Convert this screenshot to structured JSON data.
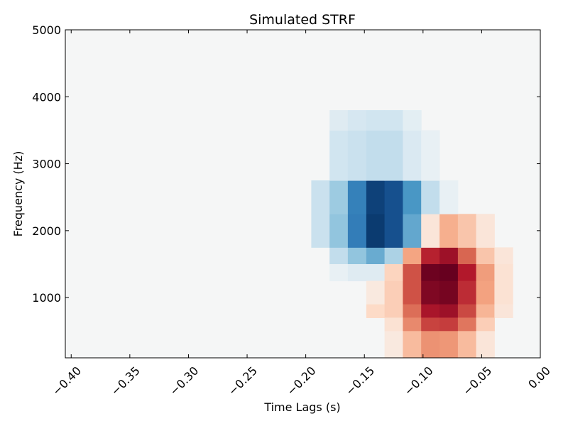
{
  "chart_data": {
    "type": "heatmap",
    "title": "Simulated STRF",
    "xlabel": "Time Lags (s)",
    "ylabel": "Frequency (Hz)",
    "xlim": [
      -0.405,
      0.0
    ],
    "ylim": [
      100,
      5000
    ],
    "xticks": [
      -0.4,
      -0.35,
      -0.3,
      -0.25,
      -0.2,
      -0.15,
      -0.1,
      -0.05,
      0.0
    ],
    "xtick_labels": [
      "−0.40",
      "−0.35",
      "−0.30",
      "−0.25",
      "−0.20",
      "−0.15",
      "−0.10",
      "−0.05",
      "0.00"
    ],
    "yticks": [
      1000,
      2000,
      3000,
      4000,
      5000
    ],
    "ytick_labels": [
      "1000",
      "2000",
      "3000",
      "4000",
      "5000"
    ],
    "colormap": "RdBu_r (blue = negative, red = positive)",
    "color_range": [
      -1,
      1
    ],
    "grid": false,
    "time_bins": [
      -0.1875,
      -0.1719,
      -0.1563,
      -0.1406,
      -0.125,
      -0.1094,
      -0.0938,
      -0.0781,
      -0.0625,
      -0.0469,
      -0.0313
    ],
    "time_bin_width": 0.0156,
    "freq_bins": [
      250,
      500,
      750,
      1000,
      1250,
      1500,
      1750,
      2000,
      2500,
      3000,
      3500
    ],
    "freq_bin_edges": [
      100,
      200,
      300,
      400,
      500,
      600,
      700,
      800,
      900,
      1000,
      1100,
      1200,
      1300,
      1400,
      1500,
      1750,
      2000,
      2250,
      2500,
      2750,
      3000,
      3500,
      4000
    ],
    "cells": [
      {
        "t": -0.1719,
        "f0": 1500,
        "f1": 1750,
        "v": -0.12
      },
      {
        "t": -0.1563,
        "f0": 1500,
        "f1": 1750,
        "v": -0.25
      },
      {
        "t": -0.1406,
        "f0": 1500,
        "f1": 1750,
        "v": -0.38
      },
      {
        "t": -0.125,
        "f0": 1500,
        "f1": 1750,
        "v": -0.18
      },
      {
        "t": -0.1094,
        "f0": 1500,
        "f1": 1750,
        "v": 0.25
      },
      {
        "t": -0.0938,
        "f0": 1500,
        "f1": 1750,
        "v": 0.72
      },
      {
        "t": -0.0781,
        "f0": 1500,
        "f1": 1750,
        "v": 0.82
      },
      {
        "t": -0.0625,
        "f0": 1500,
        "f1": 1750,
        "v": 0.48
      },
      {
        "t": -0.0469,
        "f0": 1500,
        "f1": 1750,
        "v": 0.15
      },
      {
        "t": -0.0313,
        "f0": 1500,
        "f1": 1750,
        "v": 0.05
      },
      {
        "t": -0.1875,
        "f0": 1750,
        "f1": 2250,
        "v": -0.1
      },
      {
        "t": -0.1719,
        "f0": 1750,
        "f1": 2250,
        "v": -0.25
      },
      {
        "t": -0.1563,
        "f0": 1750,
        "f1": 2250,
        "v": -0.62
      },
      {
        "t": -0.1406,
        "f0": 1750,
        "f1": 2250,
        "v": -0.95
      },
      {
        "t": -0.125,
        "f0": 1750,
        "f1": 2250,
        "v": -0.85
      },
      {
        "t": -0.1094,
        "f0": 1750,
        "f1": 2250,
        "v": -0.4
      },
      {
        "t": -0.0938,
        "f0": 1750,
        "f1": 2250,
        "v": 0.05
      },
      {
        "t": -0.0781,
        "f0": 1750,
        "f1": 2250,
        "v": 0.22
      },
      {
        "t": -0.0625,
        "f0": 1750,
        "f1": 2250,
        "v": 0.15
      },
      {
        "t": -0.0469,
        "f0": 1750,
        "f1": 2250,
        "v": 0.05
      },
      {
        "t": -0.1875,
        "f0": 2250,
        "f1": 2750,
        "v": -0.1
      },
      {
        "t": -0.1719,
        "f0": 2250,
        "f1": 2750,
        "v": -0.22
      },
      {
        "t": -0.1563,
        "f0": 2250,
        "f1": 2750,
        "v": -0.6
      },
      {
        "t": -0.1406,
        "f0": 2250,
        "f1": 2750,
        "v": -0.92
      },
      {
        "t": -0.125,
        "f0": 2250,
        "f1": 2750,
        "v": -0.85
      },
      {
        "t": -0.1094,
        "f0": 2250,
        "f1": 2750,
        "v": -0.48
      },
      {
        "t": -0.0938,
        "f0": 2250,
        "f1": 2750,
        "v": -0.12
      },
      {
        "t": -0.0781,
        "f0": 2250,
        "f1": 2750,
        "v": -0.03
      },
      {
        "t": -0.1719,
        "f0": 2750,
        "f1": 3500,
        "v": -0.08
      },
      {
        "t": -0.1563,
        "f0": 2750,
        "f1": 3500,
        "v": -0.1
      },
      {
        "t": -0.1406,
        "f0": 2750,
        "f1": 3500,
        "v": -0.12
      },
      {
        "t": -0.125,
        "f0": 2750,
        "f1": 3500,
        "v": -0.12
      },
      {
        "t": -0.1094,
        "f0": 2750,
        "f1": 3500,
        "v": -0.06
      },
      {
        "t": -0.0938,
        "f0": 2750,
        "f1": 3500,
        "v": -0.03
      },
      {
        "t": -0.1719,
        "f0": 3500,
        "f1": 3800,
        "v": -0.05
      },
      {
        "t": -0.1563,
        "f0": 3500,
        "f1": 3800,
        "v": -0.07
      },
      {
        "t": -0.1406,
        "f0": 3500,
        "f1": 3800,
        "v": -0.08
      },
      {
        "t": -0.125,
        "f0": 3500,
        "f1": 3800,
        "v": -0.08
      },
      {
        "t": -0.1094,
        "f0": 3500,
        "f1": 3800,
        "v": -0.04
      },
      {
        "t": -0.1719,
        "f0": 1250,
        "f1": 1500,
        "v": -0.03
      },
      {
        "t": -0.1563,
        "f0": 1250,
        "f1": 1500,
        "v": -0.05
      },
      {
        "t": -0.1406,
        "f0": 1250,
        "f1": 1500,
        "v": -0.05
      },
      {
        "t": -0.125,
        "f0": 1250,
        "f1": 1500,
        "v": 0.1
      },
      {
        "t": -0.1094,
        "f0": 1250,
        "f1": 1500,
        "v": 0.55
      },
      {
        "t": -0.0938,
        "f0": 1250,
        "f1": 1500,
        "v": 0.98
      },
      {
        "t": -0.0781,
        "f0": 1250,
        "f1": 1500,
        "v": 1.0
      },
      {
        "t": -0.0625,
        "f0": 1250,
        "f1": 1500,
        "v": 0.75
      },
      {
        "t": -0.0469,
        "f0": 1250,
        "f1": 1500,
        "v": 0.28
      },
      {
        "t": -0.0313,
        "f0": 1250,
        "f1": 1500,
        "v": 0.06
      },
      {
        "t": -0.1406,
        "f0": 900,
        "f1": 1250,
        "v": 0.04
      },
      {
        "t": -0.125,
        "f0": 900,
        "f1": 1250,
        "v": 0.12
      },
      {
        "t": -0.1094,
        "f0": 900,
        "f1": 1250,
        "v": 0.55
      },
      {
        "t": -0.0938,
        "f0": 900,
        "f1": 1250,
        "v": 0.92
      },
      {
        "t": -0.0781,
        "f0": 900,
        "f1": 1250,
        "v": 0.95
      },
      {
        "t": -0.0625,
        "f0": 900,
        "f1": 1250,
        "v": 0.68
      },
      {
        "t": -0.0469,
        "f0": 900,
        "f1": 1250,
        "v": 0.26
      },
      {
        "t": -0.0313,
        "f0": 900,
        "f1": 1250,
        "v": 0.06
      },
      {
        "t": -0.1406,
        "f0": 700,
        "f1": 900,
        "v": 0.08
      },
      {
        "t": -0.125,
        "f0": 700,
        "f1": 900,
        "v": 0.12
      },
      {
        "t": -0.1094,
        "f0": 700,
        "f1": 900,
        "v": 0.45
      },
      {
        "t": -0.0938,
        "f0": 700,
        "f1": 900,
        "v": 0.78
      },
      {
        "t": -0.0781,
        "f0": 700,
        "f1": 900,
        "v": 0.82
      },
      {
        "t": -0.0625,
        "f0": 700,
        "f1": 900,
        "v": 0.58
      },
      {
        "t": -0.0469,
        "f0": 700,
        "f1": 900,
        "v": 0.2
      },
      {
        "t": -0.0313,
        "f0": 700,
        "f1": 900,
        "v": 0.05
      },
      {
        "t": -0.125,
        "f0": 500,
        "f1": 700,
        "v": 0.06
      },
      {
        "t": -0.1094,
        "f0": 500,
        "f1": 700,
        "v": 0.35
      },
      {
        "t": -0.0938,
        "f0": 500,
        "f1": 700,
        "v": 0.6
      },
      {
        "t": -0.0781,
        "f0": 500,
        "f1": 700,
        "v": 0.62
      },
      {
        "t": -0.0625,
        "f0": 500,
        "f1": 700,
        "v": 0.42
      },
      {
        "t": -0.0469,
        "f0": 500,
        "f1": 700,
        "v": 0.12
      },
      {
        "t": -0.125,
        "f0": 100,
        "f1": 500,
        "v": 0.04
      },
      {
        "t": -0.1094,
        "f0": 100,
        "f1": 500,
        "v": 0.18
      },
      {
        "t": -0.0938,
        "f0": 100,
        "f1": 500,
        "v": 0.32
      },
      {
        "t": -0.0781,
        "f0": 100,
        "f1": 500,
        "v": 0.3
      },
      {
        "t": -0.0625,
        "f0": 100,
        "f1": 500,
        "v": 0.18
      },
      {
        "t": -0.0469,
        "f0": 100,
        "f1": 500,
        "v": 0.05
      }
    ]
  }
}
